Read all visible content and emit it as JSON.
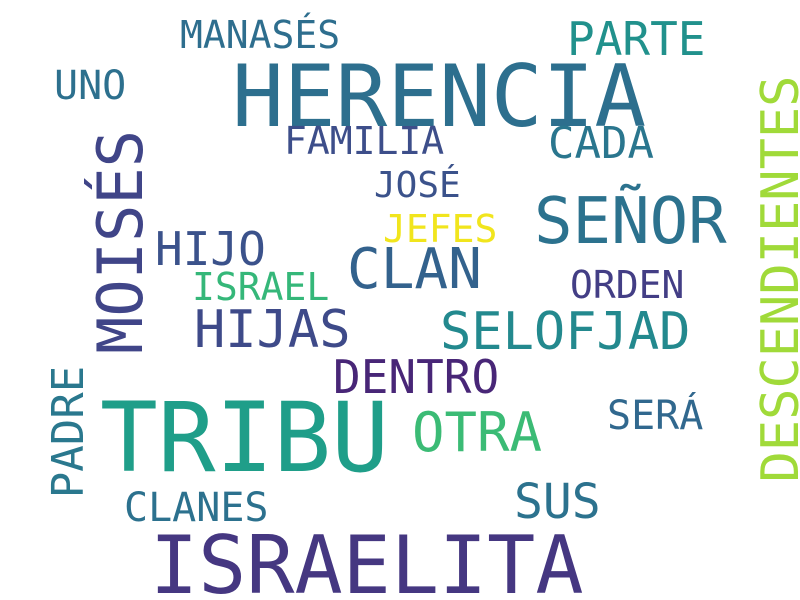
{
  "words": [
    {
      "text": "HERENCIA",
      "color": "#2d6f8e"
    },
    {
      "text": "ISRAELITA",
      "color": "#453781"
    },
    {
      "text": "TRIBU",
      "color": "#1f9e89"
    },
    {
      "text": "MOISÉS",
      "color": "#404588"
    },
    {
      "text": "DESCENDIENTES",
      "color": "#a0da39"
    },
    {
      "text": "SEÑOR",
      "color": "#2c728e"
    },
    {
      "text": "CLAN",
      "color": "#33628d"
    },
    {
      "text": "SELOFJAD",
      "color": "#23898e"
    },
    {
      "text": "HIJAS",
      "color": "#3e4a89"
    },
    {
      "text": "PARTE",
      "color": "#21918c"
    },
    {
      "text": "CADA",
      "color": "#2a768e"
    },
    {
      "text": "DENTRO",
      "color": "#482677"
    },
    {
      "text": "OTRA",
      "color": "#3bbb75"
    },
    {
      "text": "SUS",
      "color": "#2c728e"
    },
    {
      "text": "HIJO",
      "color": "#3b528b"
    },
    {
      "text": "FAMILIA",
      "color": "#3d4e8a"
    },
    {
      "text": "MANASÉS",
      "color": "#2e6e8e"
    },
    {
      "text": "JOSÉ",
      "color": "#3b528b"
    },
    {
      "text": "JEFES",
      "color": "#f1e51d"
    },
    {
      "text": "ISRAEL",
      "color": "#35b779"
    },
    {
      "text": "ORDEN",
      "color": "#433e85"
    },
    {
      "text": "PADRE",
      "color": "#2a788e"
    },
    {
      "text": "UNO",
      "color": "#2d708e"
    },
    {
      "text": "SERÁ",
      "color": "#31688e"
    },
    {
      "text": "CLANES",
      "color": "#2c718e"
    }
  ]
}
